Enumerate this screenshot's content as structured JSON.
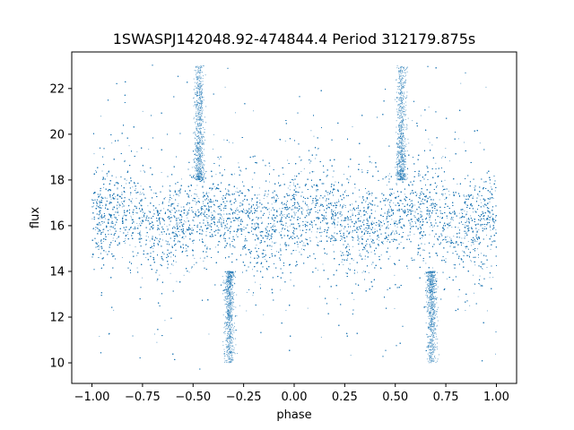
{
  "chart_data": {
    "type": "scatter",
    "title": "1SWASPJ142048.92-474844.4 Period 312179.875s",
    "xlabel": "phase",
    "ylabel": "flux",
    "xlim": [
      -1.1,
      1.1
    ],
    "ylim": [
      9.1,
      23.6
    ],
    "x_ticks": [
      -1.0,
      -0.75,
      -0.5,
      -0.25,
      0.0,
      0.25,
      0.5,
      0.75,
      1.0
    ],
    "x_tick_labels": [
      "−1.00",
      "−0.75",
      "−0.50",
      "−0.25",
      "0.00",
      "0.25",
      "0.50",
      "0.75",
      "1.00"
    ],
    "y_ticks": [
      10,
      12,
      14,
      16,
      18,
      20,
      22
    ],
    "y_tick_labels": [
      "10",
      "12",
      "14",
      "16",
      "18",
      "20",
      "22"
    ],
    "grid": false,
    "marker_color": "#1f77b4",
    "series": [
      {
        "phase_range": [
          -1.0,
          1.0
        ],
        "flux_range": [
          9.7,
          23.1
        ],
        "median_flux": 16.3,
        "core_spread": 1.0,
        "features": [
          {
            "phase": -0.47,
            "flux_range": [
              18.0,
              23.0
            ]
          },
          {
            "phase": 0.53,
            "flux_range": [
              18.0,
              23.0
            ]
          },
          {
            "phase": -0.32,
            "flux_range": [
              10.0,
              14.0
            ]
          },
          {
            "phase": 0.68,
            "flux_range": [
              10.0,
              14.0
            ]
          }
        ]
      }
    ]
  }
}
